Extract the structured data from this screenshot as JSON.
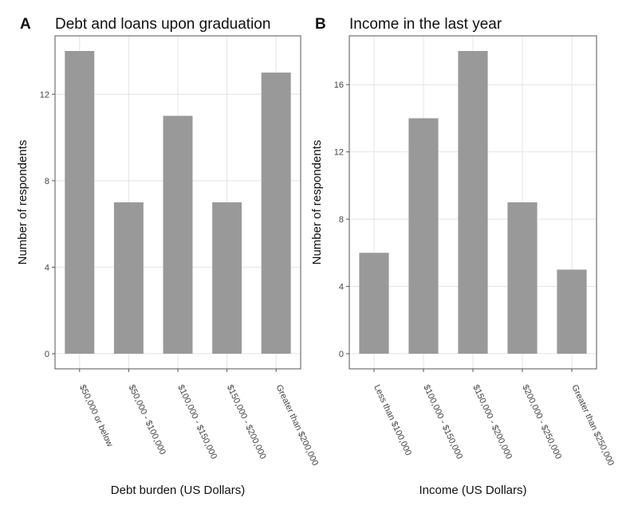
{
  "chart_data": [
    {
      "type": "bar",
      "tag": "A",
      "title": "Debt and loans upon graduation",
      "x_label": "Debt burden (US Dollars)",
      "y_label": "Number of respondents",
      "categories": [
        "$50,000 or below",
        "$50,000 - $100,000",
        "$100,000 - $150,000",
        "$150,000 - $200,000",
        "Greater than $200,000"
      ],
      "values": [
        14,
        7,
        11,
        7,
        13
      ],
      "color": "#999999",
      "ylim": [
        -0.7,
        14.7
      ],
      "yticks": [
        0,
        4,
        8,
        12
      ],
      "grid": true
    },
    {
      "type": "bar",
      "tag": "B",
      "title": "Income in the last year",
      "x_label": "Income (US Dollars)",
      "y_label": "Number of respondents",
      "categories": [
        "Less than $100,000",
        "$100,000 - $150,000",
        "$150,000 - $200,000",
        "$200,000 - $250,000",
        "Greater than $250,000"
      ],
      "values": [
        6,
        14,
        18,
        9,
        5
      ],
      "color": "#999999",
      "ylim": [
        -0.9,
        18.9
      ],
      "yticks": [
        0,
        4,
        8,
        12,
        16
      ],
      "grid": true
    }
  ]
}
